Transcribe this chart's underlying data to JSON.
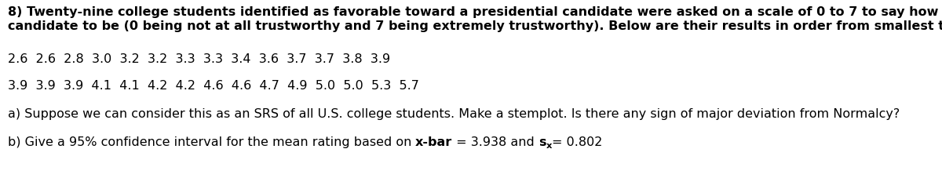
{
  "title_bold_line1": "8) Twenty-nine college students identified as favorable toward a presidential candidate were asked on a scale of 0 to 7 to say how trustworthy they believed the",
  "title_bold_line2": "candidate to be (0 being not at all trustworthy and 7 being extremely trustworthy). Below are their results in order from smallest to largest:",
  "line1": "2.6  2.6  2.8  3.0  3.2  3.2  3.3  3.3  3.4  3.6  3.7  3.7  3.8  3.9",
  "line2": "3.9  3.9  3.9  4.1  4.1  4.2  4.2  4.6  4.6  4.7  4.9  5.0  5.0  5.3  5.7",
  "line_a": "a) Suppose we can consider this as an SRS of all U.S. college students. Make a stemplot. Is there any sign of major deviation from Normalcy?",
  "line_b_prefix": "b) Give a 95% confidence interval for the mean rating based on ",
  "line_b_bold1": "x-bar",
  "line_b_mid": " = 3.938 and ",
  "line_b_bold2": "s",
  "line_b_sub": "x",
  "line_b_suffix": "= 0.802",
  "bg_color": "#ffffff",
  "text_color": "#000000",
  "font_size": 11.5,
  "fig_width": 12.0,
  "fig_height": 2.27,
  "dpi": 100
}
